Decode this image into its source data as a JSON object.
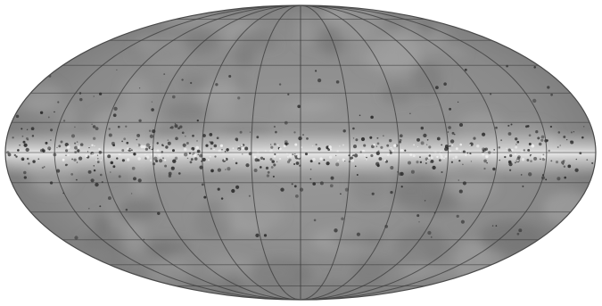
{
  "map": {
    "projection": "mollweide",
    "coordinate_system": "galactic",
    "graticule": {
      "meridian_step_deg": 30,
      "parallel_step_deg": 15
    },
    "colors": {
      "background": "#ffffff",
      "sky_dark": "#6f6f6f",
      "sky_mid": "#8c8c8c",
      "sky_light": "#a6a6a6",
      "galactic_plane": "#eeeeee",
      "clumps": "#2e2e2e",
      "grid_line": "#3a3a3a"
    }
  }
}
